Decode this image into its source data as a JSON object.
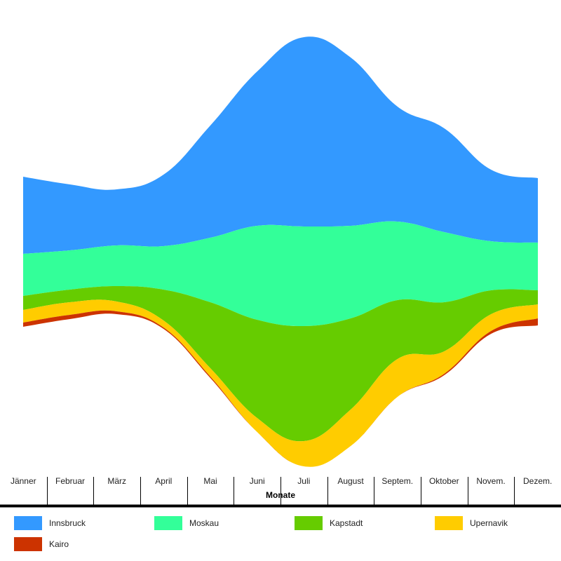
{
  "chart_data": {
    "type": "area",
    "stacking": "silhouette (streamgraph)",
    "categories": [
      "Jänner",
      "Februar",
      "März",
      "April",
      "Mai",
      "Juni",
      "Juli",
      "August",
      "Septem.",
      "Oktober",
      "Novem.",
      "Dezem."
    ],
    "xlabel": "Monate",
    "ylabel": "",
    "grid": false,
    "legend_position": "bottom",
    "series": [
      {
        "name": "Innsbruck",
        "color": "#3399ff",
        "values": [
          55,
          47,
          40,
          51,
          80,
          110,
          135,
          120,
          82,
          74,
          51,
          46
        ]
      },
      {
        "name": "Moskau",
        "color": "#33ff99",
        "values": [
          30,
          28,
          29,
          31,
          46,
          67,
          71,
          66,
          56,
          50,
          35,
          34
        ]
      },
      {
        "name": "Kapstadt",
        "color": "#66cc00",
        "values": [
          10,
          9,
          11,
          22,
          47,
          70,
          82,
          65,
          42,
          35,
          17,
          10
        ]
      },
      {
        "name": "Upernavik",
        "color": "#ffcc00",
        "values": [
          9,
          9,
          7,
          5,
          6,
          10,
          18,
          26,
          27,
          16,
          12,
          10
        ]
      },
      {
        "name": "Kairo",
        "color": "#cc3300",
        "values": [
          3,
          3,
          2,
          1,
          1,
          0,
          0,
          0,
          0,
          1,
          2,
          5
        ]
      }
    ]
  }
}
